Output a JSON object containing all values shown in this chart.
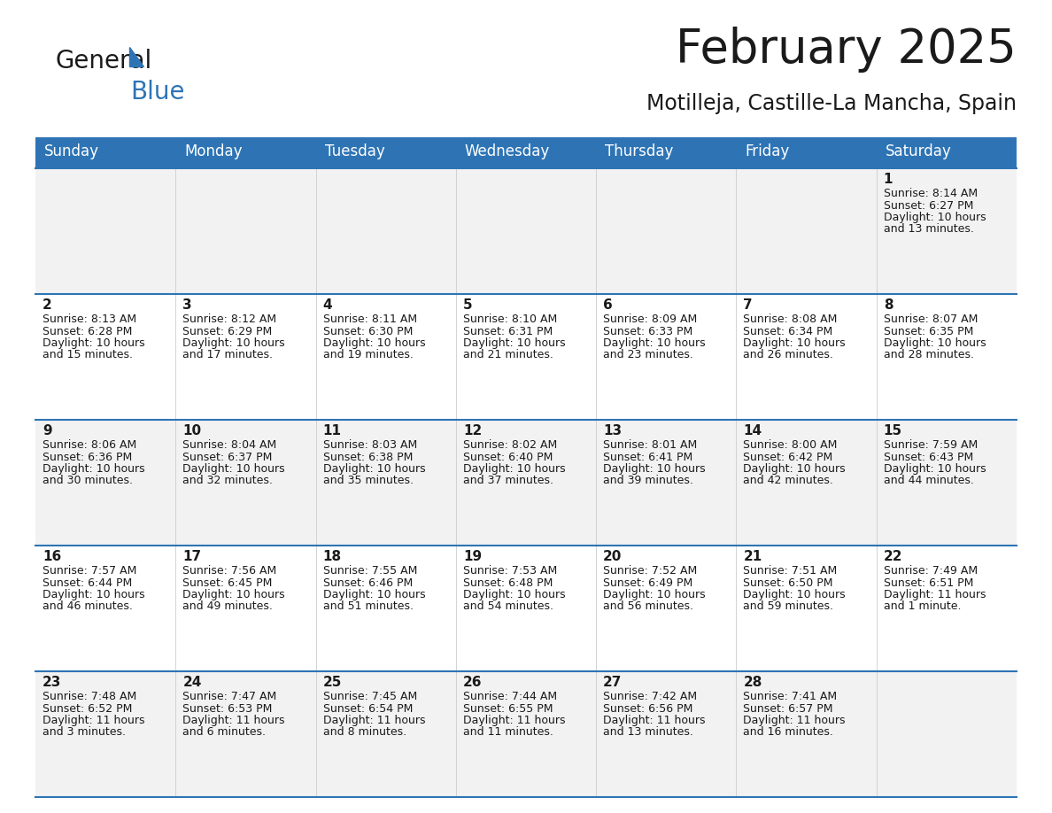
{
  "title": "February 2025",
  "subtitle": "Motilleja, Castille-La Mancha, Spain",
  "header_bg": "#2E74B5",
  "header_text_color": "#FFFFFF",
  "row_bg": [
    "#F2F2F2",
    "#FFFFFF",
    "#F2F2F2",
    "#FFFFFF",
    "#F2F2F2"
  ],
  "days_of_week": [
    "Sunday",
    "Monday",
    "Tuesday",
    "Wednesday",
    "Thursday",
    "Friday",
    "Saturday"
  ],
  "calendar": [
    [
      null,
      null,
      null,
      null,
      null,
      null,
      1
    ],
    [
      2,
      3,
      4,
      5,
      6,
      7,
      8
    ],
    [
      9,
      10,
      11,
      12,
      13,
      14,
      15
    ],
    [
      16,
      17,
      18,
      19,
      20,
      21,
      22
    ],
    [
      23,
      24,
      25,
      26,
      27,
      28,
      null
    ]
  ],
  "sunrise": {
    "1": "8:14 AM",
    "2": "8:13 AM",
    "3": "8:12 AM",
    "4": "8:11 AM",
    "5": "8:10 AM",
    "6": "8:09 AM",
    "7": "8:08 AM",
    "8": "8:07 AM",
    "9": "8:06 AM",
    "10": "8:04 AM",
    "11": "8:03 AM",
    "12": "8:02 AM",
    "13": "8:01 AM",
    "14": "8:00 AM",
    "15": "7:59 AM",
    "16": "7:57 AM",
    "17": "7:56 AM",
    "18": "7:55 AM",
    "19": "7:53 AM",
    "20": "7:52 AM",
    "21": "7:51 AM",
    "22": "7:49 AM",
    "23": "7:48 AM",
    "24": "7:47 AM",
    "25": "7:45 AM",
    "26": "7:44 AM",
    "27": "7:42 AM",
    "28": "7:41 AM"
  },
  "sunset": {
    "1": "6:27 PM",
    "2": "6:28 PM",
    "3": "6:29 PM",
    "4": "6:30 PM",
    "5": "6:31 PM",
    "6": "6:33 PM",
    "7": "6:34 PM",
    "8": "6:35 PM",
    "9": "6:36 PM",
    "10": "6:37 PM",
    "11": "6:38 PM",
    "12": "6:40 PM",
    "13": "6:41 PM",
    "14": "6:42 PM",
    "15": "6:43 PM",
    "16": "6:44 PM",
    "17": "6:45 PM",
    "18": "6:46 PM",
    "19": "6:48 PM",
    "20": "6:49 PM",
    "21": "6:50 PM",
    "22": "6:51 PM",
    "23": "6:52 PM",
    "24": "6:53 PM",
    "25": "6:54 PM",
    "26": "6:55 PM",
    "27": "6:56 PM",
    "28": "6:57 PM"
  },
  "daylight": {
    "1": [
      "10 hours",
      "and 13 minutes."
    ],
    "2": [
      "10 hours",
      "and 15 minutes."
    ],
    "3": [
      "10 hours",
      "and 17 minutes."
    ],
    "4": [
      "10 hours",
      "and 19 minutes."
    ],
    "5": [
      "10 hours",
      "and 21 minutes."
    ],
    "6": [
      "10 hours",
      "and 23 minutes."
    ],
    "7": [
      "10 hours",
      "and 26 minutes."
    ],
    "8": [
      "10 hours",
      "and 28 minutes."
    ],
    "9": [
      "10 hours",
      "and 30 minutes."
    ],
    "10": [
      "10 hours",
      "and 32 minutes."
    ],
    "11": [
      "10 hours",
      "and 35 minutes."
    ],
    "12": [
      "10 hours",
      "and 37 minutes."
    ],
    "13": [
      "10 hours",
      "and 39 minutes."
    ],
    "14": [
      "10 hours",
      "and 42 minutes."
    ],
    "15": [
      "10 hours",
      "and 44 minutes."
    ],
    "16": [
      "10 hours",
      "and 46 minutes."
    ],
    "17": [
      "10 hours",
      "and 49 minutes."
    ],
    "18": [
      "10 hours",
      "and 51 minutes."
    ],
    "19": [
      "10 hours",
      "and 54 minutes."
    ],
    "20": [
      "10 hours",
      "and 56 minutes."
    ],
    "21": [
      "10 hours",
      "and 59 minutes."
    ],
    "22": [
      "11 hours",
      "and 1 minute."
    ],
    "23": [
      "11 hours",
      "and 3 minutes."
    ],
    "24": [
      "11 hours",
      "and 6 minutes."
    ],
    "25": [
      "11 hours",
      "and 8 minutes."
    ],
    "26": [
      "11 hours",
      "and 11 minutes."
    ],
    "27": [
      "11 hours",
      "and 13 minutes."
    ],
    "28": [
      "11 hours",
      "and 16 minutes."
    ]
  },
  "divider_color": "#2E74B5",
  "background_color": "#FFFFFF",
  "title_color": "#1a1a1a",
  "subtitle_color": "#1a1a1a",
  "day_num_color": "#1a1a1a",
  "cell_text_color": "#1a1a1a"
}
